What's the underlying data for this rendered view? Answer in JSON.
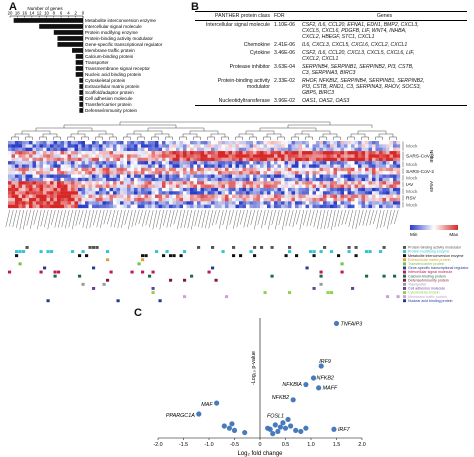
{
  "panels": {
    "a": "A",
    "b": "B",
    "c": "C"
  },
  "panel_a": {
    "axis_title": "Number of genes",
    "ticks": [
      "20",
      "18",
      "16",
      "14",
      "12",
      "10",
      "8",
      "6",
      "4",
      "2",
      "0"
    ],
    "categories": [
      {
        "label": "Metabolite interconversion enzyme",
        "value": 19
      },
      {
        "label": "Intercellular signal molecule",
        "value": 12
      },
      {
        "label": "Protein modifying enzyme",
        "value": 8
      },
      {
        "label": "Protein-binding activity modulator",
        "value": 7
      },
      {
        "label": "Gene-specific transcriptional regulator",
        "value": 7
      },
      {
        "label": "Membrane traffic protein",
        "value": 3
      },
      {
        "label": "Calcium-binding protein",
        "value": 2
      },
      {
        "label": "Transporter",
        "value": 2
      },
      {
        "label": "Transmembrane signal receptor",
        "value": 2
      },
      {
        "label": "Nucleic acid binding protein",
        "value": 2
      },
      {
        "label": "Cytoskeletal protein",
        "value": 1
      },
      {
        "label": "Extracellular matrix protein",
        "value": 1
      },
      {
        "label": "Scaffold/adaptor protein",
        "value": 1
      },
      {
        "label": "Cell adhesion molecule",
        "value": 1
      },
      {
        "label": "Transfer/carrier protein",
        "value": 1
      },
      {
        "label": "Defense/immunity protein",
        "value": 1
      }
    ]
  },
  "panel_b": {
    "headers": [
      "PANTHER protein class",
      "FDR",
      "Genes"
    ],
    "rows": [
      {
        "cls": "Intercellular signal molecule",
        "fdr": "1.10E-06",
        "genes": [
          "CSF2, IL6, CCL20, EFNA1, EDN1, BMP2, CXCL3,",
          "CXCL5, CXCL6, PDGFB, LIF, WNT4, INHBA,",
          "CXCL2, HBEGF, STC1, CXCL1"
        ]
      },
      {
        "cls": "Chemokine",
        "fdr": "2.41E-06",
        "genes": [
          "IL6, CXCL3, CXCL5, CXCL6, CXCL2, CXCL1"
        ]
      },
      {
        "cls": "Cytokine",
        "fdr": "3.46E-06",
        "genes": [
          "CSF2, IL6, CCL20, CXCL3, CXCL5, CXCL6, LIF,",
          "CXCL2, CXCL1"
        ]
      },
      {
        "cls": "Protease inhibitor",
        "fdr": "3.63E-04",
        "genes": [
          "SERPINB4, SERPINB1, SERPINB2, PI3, CSTB,",
          "C3, SERPINA3, BIRC3"
        ]
      },
      {
        "cls": "Protein-binding activity modulator",
        "fdr": "2.33E-02",
        "genes": [
          "RHOF, NFKBIZ, SERPINB4, SERPINB1, SERPINB2,",
          "PI3, CSTB, RND1, C3, SERPINA3, RHOV, SOCS3,",
          "GBP5, BIRC3"
        ]
      },
      {
        "cls": "Nucleotidyltransferase",
        "fdr": "3.96E-02",
        "genes": [
          "OAS1, OAS2, OAS3"
        ]
      }
    ]
  },
  "heatmap": {
    "row_groups": [
      {
        "name": "Mock",
        "cell": "NHBE"
      },
      {
        "name": "SARS-CoV-2",
        "cell": "NHBE"
      },
      {
        "name": "Mock",
        "cell": "A549"
      },
      {
        "name": "SARS-CoV-2",
        "cell": "A549"
      },
      {
        "name": "Mock",
        "cell": "A549"
      },
      {
        "name": "IAV",
        "cell": "A549"
      },
      {
        "name": "Mock",
        "cell": "A549"
      },
      {
        "name": "RSV",
        "cell": "A549"
      },
      {
        "name": "Mock",
        "cell": "A549"
      }
    ],
    "cell_lines": [
      "NHBE",
      "A549"
    ],
    "legend": {
      "min": "Min",
      "max": "Max"
    }
  },
  "categories_legend": [
    {
      "label": "Protein-binding activity modulator",
      "color": "#555555"
    },
    {
      "label": "Protein modifying enzyme",
      "color": "#33c3d6"
    },
    {
      "label": "Metabolite interconversion enzyme",
      "color": "#111111"
    },
    {
      "label": "Extracellular matrix protein",
      "color": "#d7a13a"
    },
    {
      "label": "Transfer/carrier protein",
      "color": "#6dc24b"
    },
    {
      "label": "Gene-specific transcriptional regulator",
      "color": "#2a3b8f"
    },
    {
      "label": "Intercellular signal molecule",
      "color": "#c0185a"
    },
    {
      "label": "Calcium-binding protein",
      "color": "#1b6b4a"
    },
    {
      "label": "Defense/immunity protein",
      "color": "#7a1f3b"
    },
    {
      "label": "Transporter",
      "color": "#9a9a9a"
    },
    {
      "label": "Cell adhesion molecule",
      "color": "#6a3d9a"
    },
    {
      "label": "Cytoskeletal protein",
      "color": "#8fd14f"
    },
    {
      "label": "Membrane traffic protein",
      "color": "#c8a2d6"
    },
    {
      "label": "Nuclear acid binding protein",
      "color": "#1f3a93"
    }
  ],
  "panel_c": {
    "xlabel": "Log₂ fold change",
    "ylabel": "-Log₁₀ p-value",
    "xticks": [
      "-2.0",
      "-1.5",
      "-1.0",
      "-0.5",
      "0",
      "0.5",
      "1.0",
      "1.5",
      "2.0"
    ],
    "point_color": "#3a6fb5",
    "labels": [
      {
        "text": "TNFAIP3",
        "x": 1.5,
        "y": 10.5
      },
      {
        "text": "IRF9",
        "x": 1.2,
        "y": 6.6
      },
      {
        "text": "NFKB2",
        "x": 1.05,
        "y": 5.5
      },
      {
        "text": "NFKBIA",
        "x": 0.9,
        "y": 4.9
      },
      {
        "text": "MAFF",
        "x": 1.15,
        "y": 4.6
      },
      {
        "text": "NFKB2",
        "x": 0.65,
        "y": 3.5
      },
      {
        "text": "MAF",
        "x": -0.85,
        "y": 3.2
      },
      {
        "text": "PPARGC1A",
        "x": -1.2,
        "y": 2.2
      },
      {
        "text": "FOSL1",
        "x": 0.55,
        "y": 1.7
      },
      {
        "text": "IRF7",
        "x": 1.45,
        "y": 0.8
      }
    ]
  },
  "chart_data": [
    {
      "type": "bar",
      "orientation": "horizontal",
      "xlabel": "Number of genes",
      "xlim": [
        20,
        0
      ],
      "categories": [
        "Metabolite interconversion enzyme",
        "Intercellular signal molecule",
        "Protein modifying enzyme",
        "Protein-binding activity modulator",
        "Gene-specific transcriptional regulator",
        "Membrane traffic protein",
        "Calcium-binding protein",
        "Transporter",
        "Transmembrane signal receptor",
        "Nucleic acid binding protein",
        "Cytoskeletal protein",
        "Extracellular matrix protein",
        "Scaffold/adaptor protein",
        "Cell adhesion molecule",
        "Transfer/carrier protein",
        "Defense/immunity protein"
      ],
      "values": [
        19,
        12,
        8,
        7,
        7,
        3,
        2,
        2,
        2,
        2,
        1,
        1,
        1,
        1,
        1,
        1
      ]
    },
    {
      "type": "scatter",
      "xlabel": "Log₂ fold change",
      "ylabel": "-Log₁₀ p-value",
      "xlim": [
        -2.0,
        2.0
      ],
      "ylim": [
        0,
        11
      ],
      "points": [
        {
          "x": 1.5,
          "y": 10.5
        },
        {
          "x": 1.2,
          "y": 6.6
        },
        {
          "x": 1.05,
          "y": 5.5
        },
        {
          "x": 0.9,
          "y": 4.9
        },
        {
          "x": 1.15,
          "y": 4.6
        },
        {
          "x": 0.65,
          "y": 3.5
        },
        {
          "x": -0.85,
          "y": 3.2
        },
        {
          "x": -1.2,
          "y": 2.2
        },
        {
          "x": 0.55,
          "y": 1.7
        },
        {
          "x": 1.45,
          "y": 0.8
        },
        {
          "x": 0.3,
          "y": 1.2
        },
        {
          "x": 0.4,
          "y": 1.0
        },
        {
          "x": 0.5,
          "y": 0.9
        },
        {
          "x": 0.6,
          "y": 1.1
        },
        {
          "x": 0.2,
          "y": 0.8
        },
        {
          "x": 0.35,
          "y": 0.6
        },
        {
          "x": 0.7,
          "y": 0.7
        },
        {
          "x": 0.45,
          "y": 1.4
        },
        {
          "x": -0.6,
          "y": 0.9
        },
        {
          "x": -0.7,
          "y": 1.1
        },
        {
          "x": -0.5,
          "y": 0.7
        },
        {
          "x": -0.3,
          "y": 0.5
        },
        {
          "x": -0.55,
          "y": 1.3
        },
        {
          "x": 0.8,
          "y": 0.6
        },
        {
          "x": 0.25,
          "y": 0.4
        },
        {
          "x": 0.15,
          "y": 0.9
        },
        {
          "x": 0.9,
          "y": 0.9
        }
      ]
    }
  ]
}
